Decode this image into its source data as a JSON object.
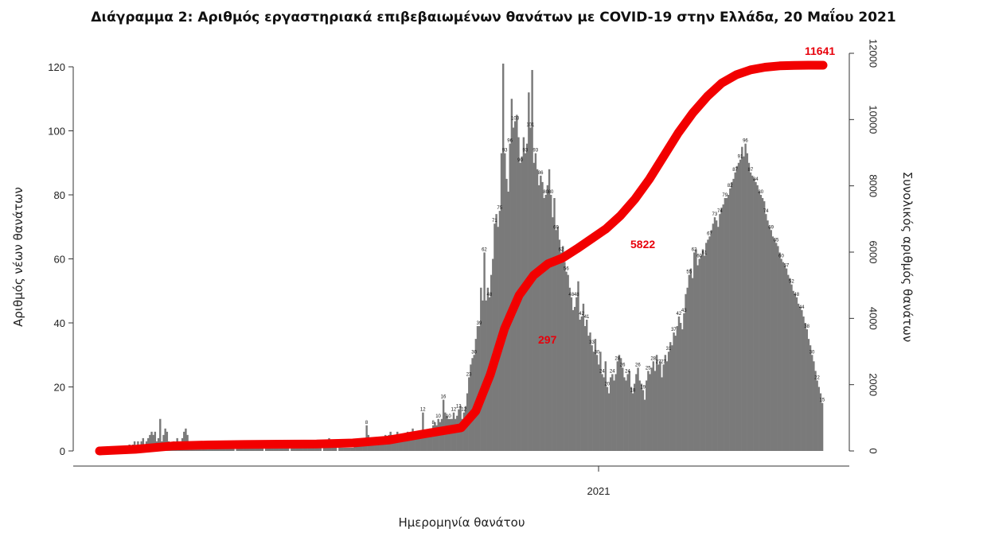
{
  "title": "Διάγραμμα 2: Αριθμός εργαστηριακά επιβεβαιωμένων θανάτων με COVID-19 στην Ελλάδα, 20 Μαΐου 2021",
  "colors": {
    "bars": "#7a7a7a",
    "line": "#f20000",
    "labels": "#e8000b",
    "axis": "#333333"
  },
  "chart_data": {
    "type": "bar",
    "title": "Διάγραμμα 2: Αριθμός εργαστηριακά επιβεβαιωμένων θανάτων με COVID-19 στην Ελλάδα, 20 Μαΐου 2021",
    "xlabel": "Ημερομηνία θανάτου",
    "ylabel": "Αριθμός νέων θανάτων",
    "y2label": "Συνολικός αριθμός θανάτων",
    "x_tick_labels": [
      "2021"
    ],
    "y_ticks": [
      0,
      20,
      40,
      60,
      80,
      100,
      120
    ],
    "ylim": [
      0,
      120
    ],
    "y2_ticks": [
      0,
      2000,
      4000,
      6000,
      8000,
      10000,
      12000
    ],
    "y2lim": [
      0,
      12000
    ],
    "legend": "none",
    "grid": false,
    "series": [
      {
        "type": "bar",
        "axis": "left",
        "values": [
          0,
          0,
          0,
          0,
          0,
          0,
          0,
          0,
          0,
          0,
          0,
          0,
          0,
          0,
          0,
          0,
          1,
          2,
          1,
          2,
          3,
          1,
          3,
          2,
          3,
          4,
          2,
          3,
          4,
          5,
          6,
          5,
          6,
          3,
          4,
          10,
          3,
          5,
          7,
          6,
          3,
          2,
          2,
          3,
          1,
          4,
          3,
          3,
          4,
          6,
          7,
          5,
          3,
          3,
          2,
          1,
          1,
          2,
          2,
          2,
          2,
          3,
          2,
          1,
          1,
          1,
          2,
          2,
          2,
          2,
          1,
          1,
          1,
          2,
          1,
          1,
          1,
          1,
          1,
          0,
          1,
          1,
          2,
          1,
          1,
          1,
          1,
          1,
          1,
          1,
          1,
          1,
          1,
          1,
          1,
          1,
          0,
          1,
          1,
          1,
          1,
          3,
          2,
          1,
          1,
          1,
          1,
          1,
          1,
          1,
          1,
          0,
          1,
          1,
          1,
          1,
          1,
          1,
          1,
          1,
          1,
          1,
          1,
          2,
          1,
          1,
          1,
          1,
          1,
          1,
          0,
          1,
          2,
          3,
          4,
          2,
          1,
          1,
          1,
          0,
          1,
          1,
          1,
          1,
          1,
          1,
          1,
          1,
          1,
          2,
          2,
          2,
          2,
          3,
          2,
          3,
          8,
          5,
          4,
          3,
          2,
          3,
          4,
          3,
          3,
          4,
          3,
          5,
          4,
          5,
          6,
          5,
          4,
          5,
          6,
          5,
          5,
          4,
          5,
          4,
          6,
          5,
          6,
          7,
          6,
          5,
          6,
          6,
          5,
          12,
          5,
          6,
          6,
          7,
          6,
          8,
          9,
          8,
          10,
          9,
          10,
          16,
          12,
          11,
          10,
          10,
          10,
          12,
          10,
          11,
          13,
          14,
          10,
          12,
          14,
          18,
          23,
          27,
          29,
          30,
          35,
          39,
          39,
          51,
          47,
          62,
          47,
          51,
          48,
          55,
          60,
          71,
          74,
          70,
          75,
          93,
          121,
          93,
          85,
          81,
          96,
          110,
          101,
          103,
          105,
          98,
          90,
          92,
          98,
          93,
          96,
          112,
          101,
          119,
          90,
          93,
          88,
          83,
          86,
          84,
          79,
          80,
          83,
          88,
          80,
          73,
          79,
          69,
          70,
          66,
          62,
          64,
          59,
          56,
          55,
          51,
          48,
          44,
          45,
          48,
          53,
          41,
          42,
          46,
          39,
          41,
          36,
          37,
          33,
          31,
          35,
          30,
          27,
          31,
          24,
          23,
          28,
          20,
          18,
          23,
          24,
          22,
          24,
          28,
          30,
          29,
          26,
          23,
          22,
          24,
          25,
          20,
          18,
          21,
          24,
          26,
          22,
          21,
          19,
          16,
          22,
          25,
          24,
          26,
          28,
          25,
          30,
          27,
          28,
          23,
          27,
          30,
          28,
          31,
          34,
          33,
          37,
          36,
          39,
          42,
          40,
          38,
          43,
          49,
          51,
          55,
          57,
          54,
          62,
          63,
          58,
          60,
          61,
          63,
          61,
          65,
          66,
          67,
          69,
          71,
          73,
          72,
          70,
          74,
          76,
          77,
          79,
          79,
          80,
          82,
          84,
          85,
          87,
          89,
          90,
          91,
          95,
          92,
          96,
          93,
          90,
          87,
          86,
          85,
          84,
          83,
          81,
          80,
          79,
          78,
          74,
          72,
          70,
          69,
          67,
          66,
          65,
          64,
          62,
          60,
          59,
          58,
          57,
          55,
          54,
          52,
          50,
          49,
          48,
          46,
          45,
          44,
          42,
          40,
          38,
          35,
          33,
          30,
          28,
          25,
          22,
          20,
          18,
          15
        ]
      },
      {
        "type": "line",
        "axis": "right",
        "x": [
          0,
          0.05,
          0.1,
          0.15,
          0.2,
          0.25,
          0.3,
          0.35,
          0.4,
          0.45,
          0.5,
          0.52,
          0.54,
          0.56,
          0.58,
          0.6,
          0.62,
          0.64,
          0.66,
          0.68,
          0.7,
          0.72,
          0.74,
          0.76,
          0.78,
          0.8,
          0.82,
          0.84,
          0.86,
          0.88,
          0.9,
          0.92,
          0.94,
          0.96,
          0.98,
          1.0
        ],
        "values": [
          0,
          50,
          150,
          180,
          195,
          205,
          210,
          240,
          330,
          520,
          700,
          1200,
          2300,
          3700,
          4700,
          5300,
          5650,
          5822,
          6100,
          6400,
          6700,
          7100,
          7600,
          8200,
          8900,
          9600,
          10200,
          10700,
          11100,
          11350,
          11500,
          11580,
          11620,
          11635,
          11640,
          11641
        ]
      }
    ],
    "annotations": [
      "11641",
      "5822",
      "297"
    ]
  }
}
